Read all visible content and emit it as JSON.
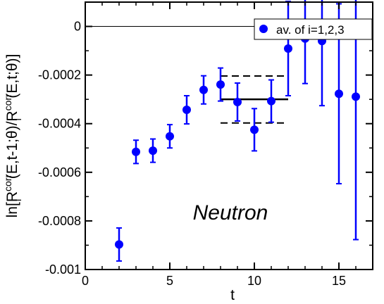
{
  "chart_data": {
    "type": "scatter",
    "xlabel": "t",
    "ylabel": {
      "parts": [
        {
          "text": "ln[R",
          "shift": "base"
        },
        {
          "text": "corr",
          "shift": "super"
        },
        {
          "text": "i",
          "shift": "sub"
        },
        {
          "text": "(E,t-1;θ)/R",
          "shift": "base"
        },
        {
          "text": "corr",
          "shift": "super"
        },
        {
          "text": "i",
          "shift": "sub"
        },
        {
          "text": "(E,t;θ)]",
          "shift": "base"
        }
      ]
    },
    "xlim": [
      0,
      17
    ],
    "ylim": [
      -0.001,
      0.0001
    ],
    "xticks": [
      0,
      5,
      10,
      15
    ],
    "yticks": [
      0,
      -0.0002,
      -0.0004,
      -0.0006,
      -0.0008,
      -0.001
    ],
    "ytick_labels": [
      "0",
      "-0.0002",
      "-0.0004",
      "-0.0006",
      "-0.0008",
      "-0.001"
    ],
    "legend_position": "top-right",
    "series": [
      {
        "name": "av. of i=1,2,3",
        "color": "#0000ff",
        "points": [
          {
            "x": 2,
            "y": -0.000897,
            "err": 6.8e-05
          },
          {
            "x": 3,
            "y": -0.000516,
            "err": 4.8e-05
          },
          {
            "x": 4,
            "y": -0.000511,
            "err": 4.8e-05
          },
          {
            "x": 5,
            "y": -0.000452,
            "err": 4.8e-05
          },
          {
            "x": 6,
            "y": -0.000343,
            "err": 5.8e-05
          },
          {
            "x": 7,
            "y": -0.000261,
            "err": 5.8e-05
          },
          {
            "x": 8,
            "y": -0.000239,
            "err": 6.8e-05
          },
          {
            "x": 9,
            "y": -0.000311,
            "err": 7.8e-05
          },
          {
            "x": 10,
            "y": -0.000425,
            "err": 8.7e-05
          },
          {
            "x": 11,
            "y": -0.000307,
            "err": 8.7e-05
          },
          {
            "x": 12,
            "y": -9.1e-05,
            "err": 0.000194
          },
          {
            "x": 13,
            "y": -5e-05,
            "err": 0.000185
          },
          {
            "x": 14,
            "y": -6e-05,
            "err": 0.000266
          },
          {
            "x": 15,
            "y": -0.000277,
            "err": 0.00037
          },
          {
            "x": 16,
            "y": -0.000289,
            "err": 0.000588
          }
        ]
      }
    ],
    "fit": {
      "x_range": [
        8,
        12
      ],
      "value": -0.0003,
      "upper": -0.000204,
      "lower": -0.000397
    },
    "reference_line_y": 0,
    "annotation": "Neutron"
  }
}
